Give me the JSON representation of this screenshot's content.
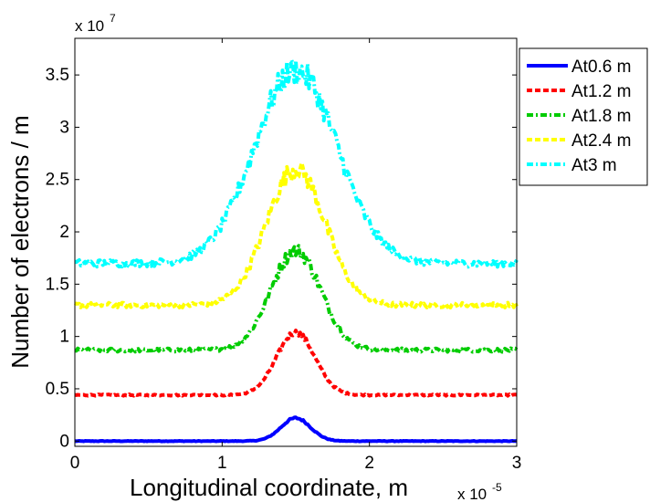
{
  "chart_data": {
    "type": "line",
    "xlabel": "Longitudinal coordinate, m",
    "x_multiplier": "x 10",
    "x_multiplier_exp": "-5",
    "ylabel": "Number of electrons / m",
    "y_multiplier": "x 10",
    "y_multiplier_exp": "7",
    "xlim": [
      0,
      3
    ],
    "ylim": [
      -0.05,
      3.85
    ],
    "x_ticks": [
      0,
      1,
      2,
      3
    ],
    "x_tick_labels": [
      "0",
      "1",
      "2",
      "3"
    ],
    "y_ticks": [
      0,
      0.5,
      1,
      1.5,
      2,
      2.5,
      3,
      3.5
    ],
    "y_tick_labels": [
      "0",
      "0.5",
      "1",
      "1.5",
      "2",
      "2.5",
      "3",
      "3.5"
    ],
    "grid": false,
    "legend_position": "outside-top-right",
    "series": [
      {
        "name": "At0.6 m",
        "color": "#0000ff",
        "dash": "solid",
        "base": 0.0,
        "peak": 0.22,
        "width": 0.1,
        "noise": 0.008
      },
      {
        "name": "At1.2 m",
        "color": "#ff0000",
        "dash": "dashed",
        "base": 0.44,
        "peak": 0.6,
        "width": 0.13,
        "noise": 0.02
      },
      {
        "name": "At1.8 m",
        "color": "#00cc00",
        "dash": "dashdot",
        "base": 0.87,
        "peak": 0.95,
        "width": 0.17,
        "noise": 0.05
      },
      {
        "name": "At2.4 m",
        "color": "#ffff00",
        "dash": "dashed",
        "base": 1.3,
        "peak": 1.3,
        "width": 0.2,
        "noise": 0.07
      },
      {
        "name": "At3 m",
        "color": "#00ffff",
        "dash": "dashdot",
        "base": 1.7,
        "peak": 1.85,
        "width": 0.28,
        "noise": 0.1
      }
    ]
  }
}
